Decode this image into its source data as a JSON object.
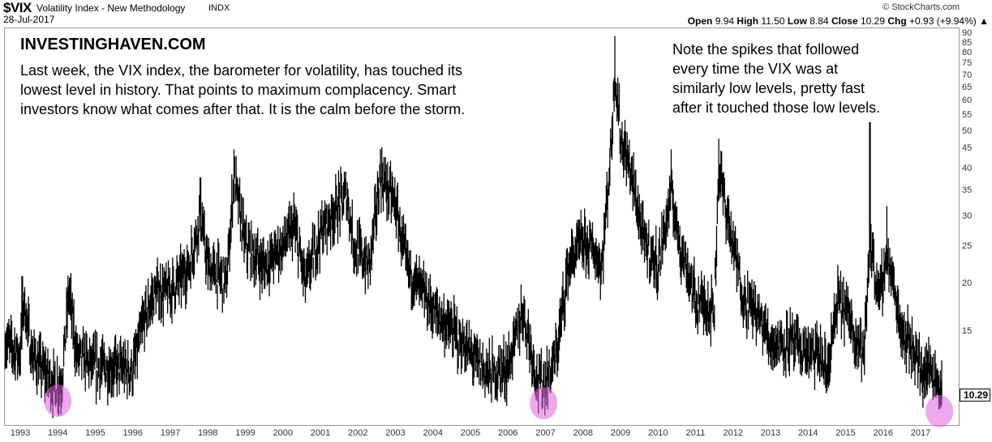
{
  "header": {
    "symbol": "$VIX",
    "description": "Volatility Index - New Methodology",
    "exchange": "INDX",
    "date": "28-Jul-2017",
    "copyright": "© StockCharts.com",
    "open_label": "Open",
    "open": "9.94",
    "high_label": "High",
    "high": "11.50",
    "low_label": "Low",
    "low": "8.84",
    "close_label": "Close",
    "close": "10.29",
    "chg_label": "Chg",
    "chg": "+0.93 (+9.94%)",
    "chg_icon": "triangle-up-icon"
  },
  "annotations": {
    "brand": "INVESTINGHAVEN.COM",
    "left": "Last week, the VIX index, the barometer for volatility, has touched its\nlowest level in history. That points to maximum complacency. Smart\ninvestors know what comes after that. It is the calm before the storm.",
    "right": "Note the spikes that followed\nevery time the VIX was at\nsimilarly low levels, pretty fast\nafter it touched those low levels."
  },
  "colors": {
    "bars": "#000000",
    "highlight": "#e060e0"
  },
  "chart_data": {
    "type": "bar",
    "subtype": "ohlc-bars",
    "title": "$VIX Volatility Index - New Methodology",
    "yscale": "log",
    "ylim": [
      8.5,
      98
    ],
    "yticks": [
      90,
      85,
      80,
      75,
      70,
      65,
      60,
      55,
      50,
      45,
      40,
      35,
      30,
      25,
      20,
      15
    ],
    "xticks": [
      "1993",
      "1994",
      "1995",
      "1996",
      "1997",
      "1998",
      "1999",
      "2000",
      "2001",
      "2002",
      "2003",
      "2004",
      "2005",
      "2006",
      "2007",
      "2008",
      "2009",
      "2010",
      "2011",
      "2012",
      "2013",
      "2014",
      "2015",
      "2016",
      "2017"
    ],
    "xlim": [
      1992.6,
      2017.8
    ],
    "last_value": "10.29",
    "levels": [
      [
        1992.6,
        14
      ],
      [
        1993.0,
        13
      ],
      [
        1993.1,
        18
      ],
      [
        1993.3,
        13
      ],
      [
        1993.9,
        10.8
      ],
      [
        1994.1,
        11
      ],
      [
        1994.3,
        19
      ],
      [
        1994.5,
        13
      ],
      [
        1995.0,
        12
      ],
      [
        1995.5,
        12
      ],
      [
        1996.0,
        11.8
      ],
      [
        1996.3,
        16
      ],
      [
        1996.6,
        19
      ],
      [
        1997.0,
        19
      ],
      [
        1997.5,
        22
      ],
      [
        1997.8,
        30
      ],
      [
        1998.0,
        22
      ],
      [
        1998.5,
        20
      ],
      [
        1998.7,
        38
      ],
      [
        1999.0,
        25
      ],
      [
        1999.5,
        22
      ],
      [
        2000.0,
        25
      ],
      [
        2000.3,
        28
      ],
      [
        2000.6,
        20
      ],
      [
        2001.0,
        27
      ],
      [
        2001.3,
        30
      ],
      [
        2001.7,
        34
      ],
      [
        2001.9,
        25
      ],
      [
        2002.3,
        22
      ],
      [
        2002.6,
        38
      ],
      [
        2002.8,
        35
      ],
      [
        2003.0,
        32
      ],
      [
        2003.3,
        22
      ],
      [
        2004.0,
        17
      ],
      [
        2004.5,
        15
      ],
      [
        2005.0,
        13
      ],
      [
        2005.5,
        11.5
      ],
      [
        2006.0,
        12
      ],
      [
        2006.4,
        17
      ],
      [
        2006.8,
        11
      ],
      [
        2007.0,
        11
      ],
      [
        2007.3,
        13
      ],
      [
        2007.6,
        22
      ],
      [
        2007.9,
        25
      ],
      [
        2008.2,
        25
      ],
      [
        2008.5,
        22
      ],
      [
        2008.75,
        45
      ],
      [
        2008.85,
        72
      ],
      [
        2009.0,
        48
      ],
      [
        2009.3,
        38
      ],
      [
        2009.6,
        26
      ],
      [
        2010.0,
        22
      ],
      [
        2010.35,
        34
      ],
      [
        2010.6,
        25
      ],
      [
        2011.0,
        18
      ],
      [
        2011.5,
        17
      ],
      [
        2011.62,
        40
      ],
      [
        2011.9,
        28
      ],
      [
        2012.3,
        18
      ],
      [
        2012.6,
        17
      ],
      [
        2013.0,
        14
      ],
      [
        2013.5,
        14
      ],
      [
        2014.0,
        13
      ],
      [
        2014.3,
        13
      ],
      [
        2014.5,
        11.5
      ],
      [
        2014.8,
        18
      ],
      [
        2015.0,
        17
      ],
      [
        2015.5,
        13
      ],
      [
        2015.65,
        26
      ],
      [
        2015.9,
        18
      ],
      [
        2016.1,
        24
      ],
      [
        2016.5,
        15
      ],
      [
        2016.9,
        13
      ],
      [
        2017.0,
        11.5
      ],
      [
        2017.3,
        12
      ],
      [
        2017.58,
        10.3
      ]
    ],
    "spikes": [
      [
        1993.05,
        21
      ],
      [
        1998.7,
        45
      ],
      [
        2002.6,
        45
      ],
      [
        2008.85,
        89
      ],
      [
        2010.35,
        45
      ],
      [
        2011.62,
        48
      ],
      [
        2015.65,
        53
      ],
      [
        2016.1,
        32
      ],
      [
        1997.8,
        38
      ]
    ],
    "highlighted_lows": [
      1994.0,
      2006.95,
      2017.5
    ]
  }
}
